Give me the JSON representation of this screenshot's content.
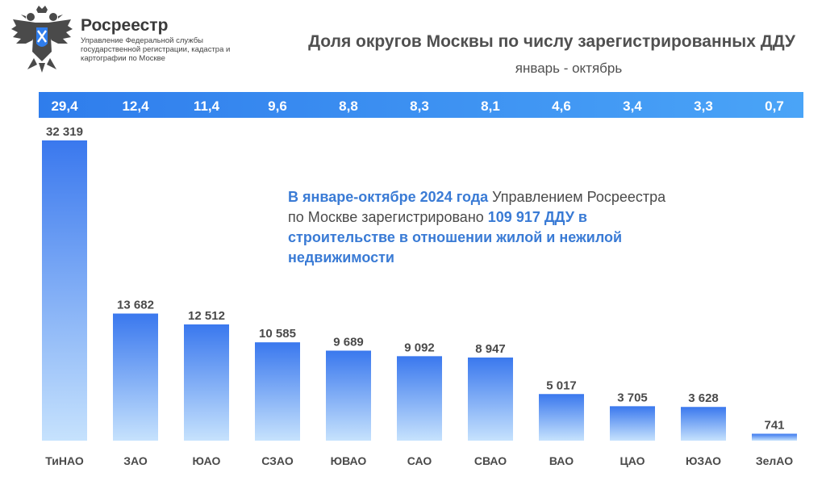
{
  "header": {
    "org_name": "Росреестр",
    "org_subtitle": "Управление Федеральной службы государственной регистрации, кадастра и картографии по Москве",
    "logo_icon": "double-headed-eagle-emblem"
  },
  "title": "Доля округов Москвы по числу зарегистрированных ДДУ",
  "subtitle": "январь - октябрь",
  "callout": {
    "part1": "В январе-октябре 2024 года",
    "part2": " Управлением Росреестра по Москве зарегистрировано ",
    "part3": "109 917 ДДУ в строительстве в отношении жилой и нежилой недвижимости"
  },
  "colors": {
    "accent": "#3a7bd5",
    "strip_left": "#2f7dec",
    "strip_right": "#4aa4f7",
    "bar_top": "#3a78ee",
    "bar_bottom": "#c6e2fd",
    "text": "#4a4a4a"
  },
  "chart_data": {
    "type": "bar",
    "categories": [
      "ТиНАО",
      "ЗАО",
      "ЮАО",
      "СЗАО",
      "ЮВАО",
      "САО",
      "СВАО",
      "ВАО",
      "ЦАО",
      "ЮЗАО",
      "ЗелАО"
    ],
    "values": [
      32319,
      13682,
      12512,
      10585,
      9689,
      9092,
      8947,
      5017,
      3705,
      3628,
      741
    ],
    "value_labels": [
      "32 319",
      "13 682",
      "12 512",
      "10 585",
      "9 689",
      "9 092",
      "8 947",
      "5 017",
      "3 705",
      "3 628",
      "741"
    ],
    "shares_percent": [
      "29,4",
      "12,4",
      "11,4",
      "9,6",
      "8,8",
      "8,3",
      "8,1",
      "4,6",
      "3,4",
      "3,3",
      "0,7"
    ],
    "ylim": [
      0,
      32319
    ],
    "xlabel": "",
    "ylabel": "",
    "grid": false,
    "legend": "none"
  }
}
